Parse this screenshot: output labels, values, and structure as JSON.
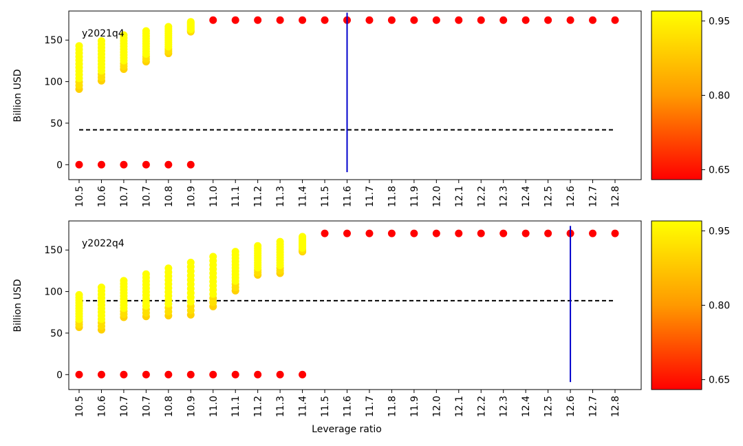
{
  "chart_data": [
    {
      "type": "scatter",
      "panel_label": "y2021q4",
      "xlabel": "",
      "ylabel": "Billion USD",
      "ylim": [
        -18,
        185
      ],
      "yticks": [
        0,
        50,
        100,
        150
      ],
      "categories": [
        "10.5",
        "10.6",
        "10.7",
        "10.7",
        "10.8",
        "10.9",
        "11.0",
        "11.1",
        "11.2",
        "11.3",
        "11.4",
        "11.5",
        "11.6",
        "11.7",
        "11.8",
        "11.9",
        "12.0",
        "12.1",
        "12.2",
        "12.3",
        "12.4",
        "12.5",
        "12.6",
        "12.7",
        "12.8"
      ],
      "dashed_line_y": 42,
      "vertical_line_category_index": 12,
      "vertical_line_range": [
        -9,
        183
      ],
      "zero_points_count": 6,
      "red_points_start_index": 6,
      "red_points_y": 174,
      "columns": [
        {
          "min": 91,
          "max": 143
        },
        {
          "min": 101,
          "max": 149
        },
        {
          "min": 115,
          "max": 156
        },
        {
          "min": 124,
          "max": 161
        },
        {
          "min": 134,
          "max": 166
        },
        {
          "min": 160,
          "max": 172
        }
      ],
      "colorbar": {
        "min": 0.63,
        "max": 0.97,
        "ticks": [
          0.65,
          0.8,
          0.95
        ],
        "tick_labels": [
          "0.65",
          "0.80",
          "0.95"
        ]
      },
      "colors": {
        "red": "#ff0000",
        "yellow": "#ffff00",
        "blue": "#0000cc",
        "dashed": "#000000"
      }
    },
    {
      "type": "scatter",
      "panel_label": "y2022q4",
      "xlabel": "Leverage ratio",
      "ylabel": "Billion USD",
      "ylim": [
        -18,
        185
      ],
      "yticks": [
        0,
        50,
        100,
        150
      ],
      "categories": [
        "10.5",
        "10.6",
        "10.7",
        "10.7",
        "10.8",
        "10.9",
        "11.0",
        "11.1",
        "11.2",
        "11.3",
        "11.4",
        "11.5",
        "11.6",
        "11.7",
        "11.8",
        "11.9",
        "12.0",
        "12.1",
        "12.2",
        "12.3",
        "12.4",
        "12.5",
        "12.6",
        "12.7",
        "12.8"
      ],
      "dashed_line_y": 89,
      "vertical_line_category_index": 22,
      "vertical_line_range": [
        -9,
        179
      ],
      "zero_points_count": 11,
      "red_points_start_index": 11,
      "red_points_y": 170,
      "columns": [
        {
          "min": 57,
          "max": 96
        },
        {
          "min": 54,
          "max": 105
        },
        {
          "min": 69,
          "max": 113
        },
        {
          "min": 70,
          "max": 121
        },
        {
          "min": 71,
          "max": 128
        },
        {
          "min": 72,
          "max": 135
        },
        {
          "min": 82,
          "max": 142
        },
        {
          "min": 101,
          "max": 148
        },
        {
          "min": 120,
          "max": 155
        },
        {
          "min": 122,
          "max": 160
        },
        {
          "min": 148,
          "max": 166
        }
      ],
      "colorbar": {
        "min": 0.63,
        "max": 0.97,
        "ticks": [
          0.65,
          0.8,
          0.95
        ],
        "tick_labels": [
          "0.65",
          "0.80",
          "0.95"
        ]
      },
      "colors": {
        "red": "#ff0000",
        "yellow": "#ffff00",
        "blue": "#0000cc",
        "dashed": "#000000"
      }
    }
  ]
}
